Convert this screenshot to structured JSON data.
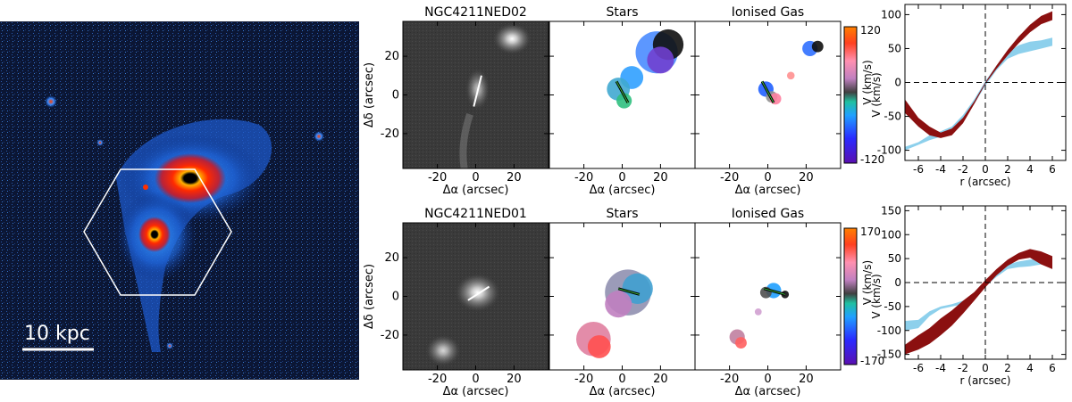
{
  "figure": {
    "scale_bar_label": "10 kpc",
    "panel_titles": {
      "top_image": "NGC4211NED02",
      "bottom_image": "NGC4211NED01",
      "stars": "Stars",
      "gas": "Ionised Gas"
    },
    "map_axes": {
      "xlabel": "Δα  (arcsec)",
      "ylabel": "Δδ (arcsec)",
      "xticks": [
        -20,
        0,
        20
      ],
      "yticks": [
        20,
        0,
        -20
      ],
      "range": [
        -38,
        38
      ]
    },
    "colorbars": [
      {
        "ylabel": "V (km/s)",
        "max_label": "120",
        "min_label": "-120",
        "max": 120,
        "min": -120
      },
      {
        "ylabel": "V (km/s)",
        "max_label": "170",
        "min_label": "-170",
        "max": 170,
        "min": -170
      }
    ],
    "colors": {
      "stars_curve": "#8b1010",
      "gas_curve": "#87ceeb",
      "sky_background": "#0a1430"
    }
  },
  "chart_data": [
    {
      "type": "area",
      "panel": "top-rotation-curve",
      "xlabel": "r (arcsec)",
      "ylabel": "V (km/s)",
      "xlim": [
        -7.2,
        7.2
      ],
      "ylim": [
        -115,
        115
      ],
      "xticks": [
        -6,
        -4,
        -2,
        0,
        2,
        4,
        6
      ],
      "yticks": [
        -100,
        -50,
        0,
        50,
        100
      ],
      "grid": false,
      "series": [
        {
          "x": [
            -7.2,
            -6,
            -5,
            -4,
            -3,
            -2,
            -1,
            0,
            1,
            2,
            3,
            4,
            5,
            6
          ],
          "upper": [
            -95,
            -88,
            -78,
            -72,
            -65,
            -48,
            -25,
            2,
            25,
            45,
            55,
            60,
            62,
            66
          ],
          "lower": [
            -100,
            -92,
            -85,
            -80,
            -72,
            -55,
            -32,
            -5,
            18,
            35,
            42,
            46,
            50,
            54
          ]
        },
        {
          "x": [
            -7.2,
            -6,
            -5,
            -4,
            -3,
            -2,
            -1,
            0,
            1,
            2,
            3,
            4,
            5,
            6
          ],
          "upper": [
            -25,
            -52,
            -65,
            -74,
            -68,
            -52,
            -28,
            0,
            25,
            48,
            68,
            85,
            98,
            105
          ],
          "lower": [
            -45,
            -65,
            -78,
            -82,
            -78,
            -60,
            -32,
            -2,
            20,
            40,
            58,
            74,
            86,
            92
          ]
        }
      ]
    },
    {
      "type": "area",
      "panel": "bottom-rotation-curve",
      "xlabel": "r (arcsec)",
      "ylabel": "V (km/s)",
      "xlim": [
        -7.2,
        7.2
      ],
      "ylim": [
        -160,
        160
      ],
      "xticks": [
        -6,
        -4,
        -2,
        0,
        2,
        4,
        6
      ],
      "yticks": [
        -150,
        -100,
        -50,
        0,
        50,
        100,
        150
      ],
      "grid": false,
      "series": [
        {
          "x": [
            -7.2,
            -6,
            -5,
            -4,
            -3,
            -2,
            -1,
            0,
            1,
            2,
            3,
            4,
            5,
            6
          ],
          "upper": [
            -80,
            -78,
            -60,
            -50,
            -45,
            -38,
            -25,
            0,
            22,
            38,
            44,
            48,
            50,
            52
          ],
          "lower": [
            -100,
            -95,
            -70,
            -55,
            -50,
            -45,
            -32,
            -8,
            12,
            28,
            32,
            34,
            38,
            40
          ]
        },
        {
          "x": [
            -7.2,
            -6,
            -5,
            -4,
            -3,
            -2,
            -1,
            0,
            1,
            2,
            3,
            4,
            5,
            6
          ],
          "upper": [
            -130,
            -110,
            -95,
            -75,
            -58,
            -38,
            -20,
            5,
            28,
            48,
            62,
            70,
            65,
            55
          ],
          "lower": [
            -150,
            -140,
            -128,
            -110,
            -90,
            -65,
            -38,
            -10,
            15,
            35,
            48,
            52,
            38,
            28
          ]
        }
      ]
    }
  ]
}
